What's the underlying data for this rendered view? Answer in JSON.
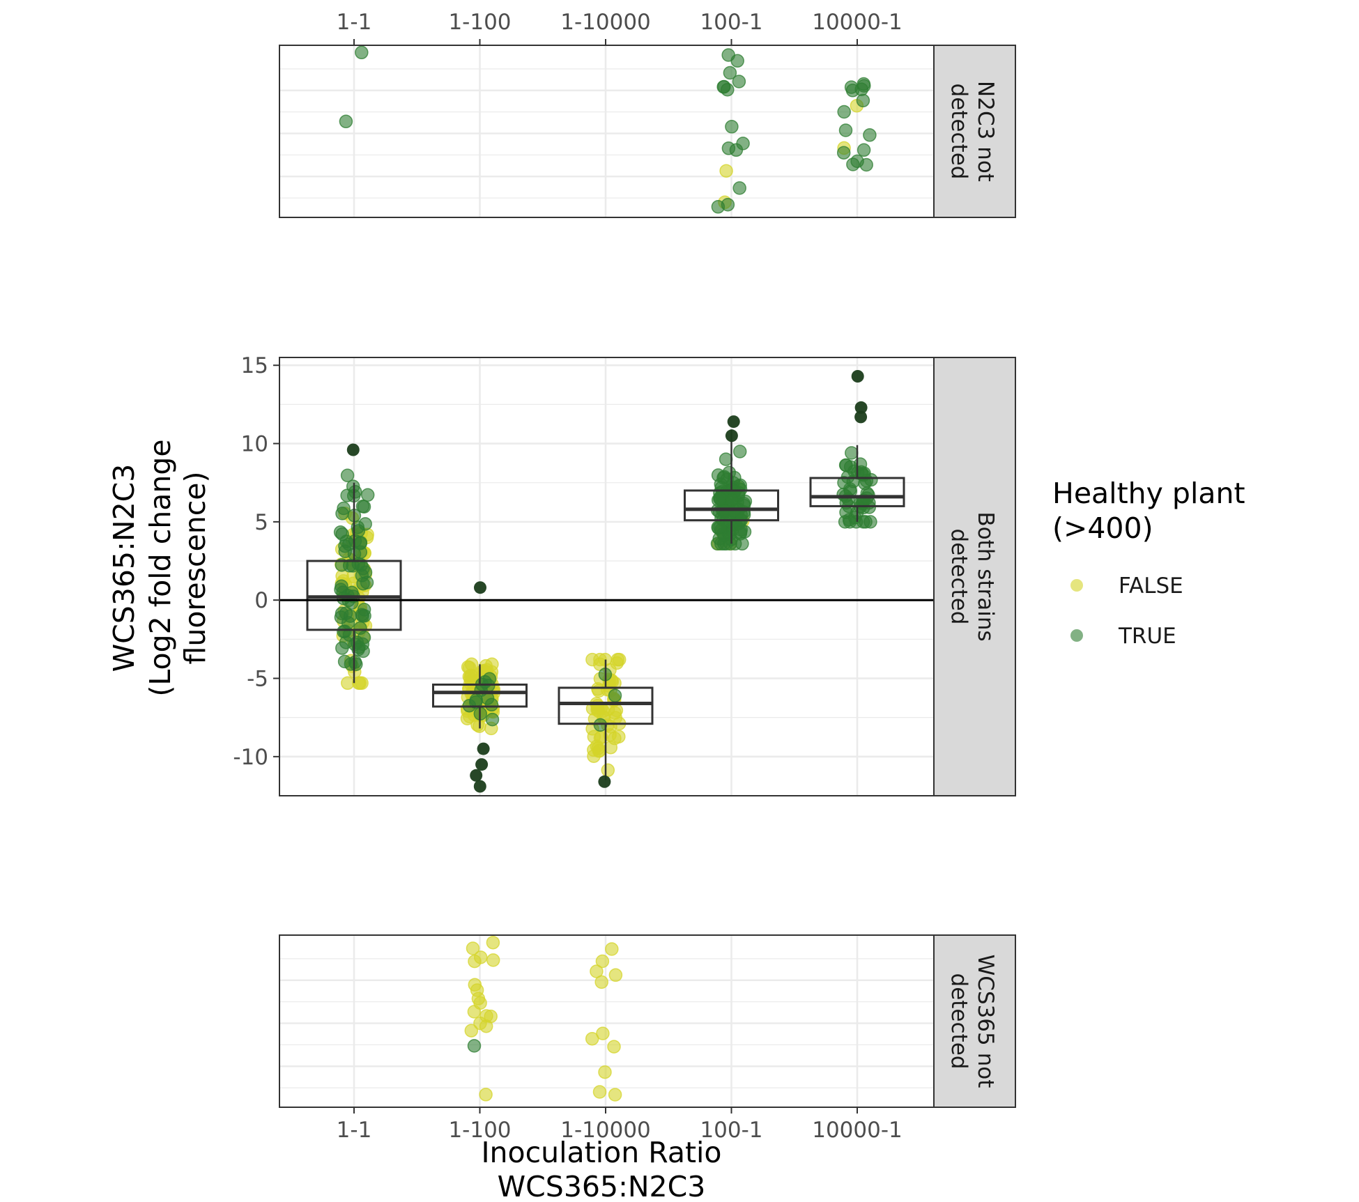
{
  "chart_data": {
    "type": "box+jitter",
    "xlabel_lines": [
      "Inoculation Ratio",
      "WCS365:N2C3"
    ],
    "ylabel_lines": [
      "WCS365:N2C3",
      "(Log2 fold change",
      "fluorescence)"
    ],
    "categories": [
      "1-1",
      "1-100",
      "1-10000",
      "100-1",
      "10000-1"
    ],
    "y_ticks": [
      15,
      10,
      5,
      0,
      -5,
      -10
    ],
    "y_tick_labels": [
      "15",
      "10",
      "5",
      "0",
      "-5",
      "-10"
    ],
    "ylim": [
      -12.5,
      15.5
    ],
    "reference_line_y": 0,
    "grid": true,
    "facets": [
      {
        "strip": [
          "N2C3 not",
          "detected"
        ]
      },
      {
        "strip": [
          "Both strains",
          "detected"
        ]
      },
      {
        "strip": [
          "WCS365 not",
          "detected"
        ]
      }
    ],
    "legend": {
      "title_lines": [
        "Healthy plant",
        "(>400)"
      ],
      "position": "right",
      "entries": [
        {
          "label": "FALSE",
          "color": "#d4d42a"
        },
        {
          "label": "TRUE",
          "color": "#2e7d32"
        }
      ]
    },
    "boxes": [
      {
        "category": "1-1",
        "q1": -1.9,
        "median": 0.2,
        "q3": 2.5,
        "whisker_low": -5.3,
        "whisker_high": 7.5
      },
      {
        "category": "1-100",
        "q1": -6.8,
        "median": -5.9,
        "q3": -5.4,
        "whisker_low": -8.2,
        "whisker_high": -4.1
      },
      {
        "category": "1-10000",
        "q1": -7.9,
        "median": -6.6,
        "q3": -5.6,
        "whisker_low": -11.5,
        "whisker_high": -3.8
      },
      {
        "category": "100-1",
        "q1": 5.1,
        "median": 5.8,
        "q3": 7.0,
        "whisker_low": 3.6,
        "whisker_high": 10.9
      },
      {
        "category": "10000-1",
        "q1": 6.0,
        "median": 6.6,
        "q3": 7.8,
        "whisker_low": 5.0,
        "whisker_high": 9.9
      }
    ],
    "outliers": [
      {
        "category": "1-1",
        "y": 9.6
      },
      {
        "category": "1-100",
        "y": 0.8
      },
      {
        "category": "1-100",
        "y": -9.5
      },
      {
        "category": "1-100",
        "y": -10.5
      },
      {
        "category": "1-100",
        "y": -11.2
      },
      {
        "category": "1-100",
        "y": -11.9
      },
      {
        "category": "1-10000",
        "y": -11.6
      },
      {
        "category": "100-1",
        "y": 11.4
      },
      {
        "category": "100-1",
        "y": 10.5
      },
      {
        "category": "10000-1",
        "y": 14.3
      },
      {
        "category": "10000-1",
        "y": 12.3
      },
      {
        "category": "10000-1",
        "y": 11.7
      }
    ],
    "points_summary": [
      {
        "facet": "N2C3 not detected",
        "category": "1-1",
        "healthy_true": 2,
        "healthy_false": 0
      },
      {
        "facet": "N2C3 not detected",
        "category": "100-1",
        "healthy_true": 14,
        "healthy_false": 2
      },
      {
        "facet": "N2C3 not detected",
        "category": "10000-1",
        "healthy_true": 14,
        "healthy_false": 2
      },
      {
        "facet": "Both strains detected",
        "category": "1-1",
        "healthy_true": 70,
        "healthy_false": 60
      },
      {
        "facet": "Both strains detected",
        "category": "1-100",
        "healthy_true": 12,
        "healthy_false": 80
      },
      {
        "facet": "Both strains detected",
        "category": "1-10000",
        "healthy_true": 3,
        "healthy_false": 55
      },
      {
        "facet": "Both strains detected",
        "category": "100-1",
        "healthy_true": 90,
        "healthy_false": 5
      },
      {
        "facet": "Both strains detected",
        "category": "10000-1",
        "healthy_true": 45,
        "healthy_false": 0
      },
      {
        "facet": "WCS365 not detected",
        "category": "1-100",
        "healthy_true": 1,
        "healthy_false": 16
      },
      {
        "facet": "WCS365 not detected",
        "category": "1-10000",
        "healthy_true": 0,
        "healthy_false": 11
      }
    ]
  }
}
